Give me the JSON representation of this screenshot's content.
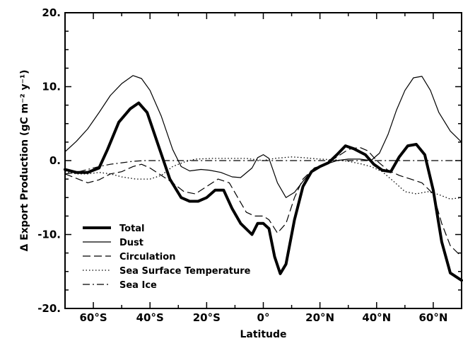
{
  "chart_data": {
    "type": "line",
    "xlabel": "Latitude",
    "ylabel": "Δ Export Production (gC m⁻² y⁻¹)",
    "xlim": [
      -70,
      70
    ],
    "ylim": [
      -20,
      20
    ],
    "x_ticks": [
      {
        "value": -60,
        "label": "60°S"
      },
      {
        "value": -40,
        "label": "40°S"
      },
      {
        "value": -20,
        "label": "20°S"
      },
      {
        "value": 0,
        "label": "0°"
      },
      {
        "value": 20,
        "label": "20°N"
      },
      {
        "value": 40,
        "label": "40°N"
      },
      {
        "value": 60,
        "label": "60°N"
      }
    ],
    "y_ticks": [
      {
        "value": 20,
        "label": "20."
      },
      {
        "value": 10,
        "label": "10."
      },
      {
        "value": 0,
        "label": "0."
      },
      {
        "value": -10,
        "label": "-10."
      },
      {
        "value": -20,
        "label": "-20."
      }
    ],
    "grid": false,
    "legend_position": "bottom-left",
    "series": [
      {
        "name": "Total",
        "style": "thick-solid",
        "points": [
          [
            -70,
            -1.2
          ],
          [
            -66,
            -1.6
          ],
          [
            -62,
            -1.6
          ],
          [
            -58,
            -1.0
          ],
          [
            -55,
            1.5
          ],
          [
            -51,
            5.2
          ],
          [
            -47,
            7.0
          ],
          [
            -44,
            7.8
          ],
          [
            -41,
            6.5
          ],
          [
            -37,
            2.0
          ],
          [
            -33,
            -2.5
          ],
          [
            -29,
            -5.0
          ],
          [
            -26,
            -5.5
          ],
          [
            -23,
            -5.5
          ],
          [
            -20,
            -5.0
          ],
          [
            -17,
            -4.0
          ],
          [
            -14,
            -4.0
          ],
          [
            -11,
            -6.5
          ],
          [
            -8,
            -8.5
          ],
          [
            -4,
            -10.0
          ],
          [
            -2,
            -8.5
          ],
          [
            0,
            -8.5
          ],
          [
            2,
            -9.2
          ],
          [
            4,
            -13.0
          ],
          [
            6,
            -15.3
          ],
          [
            8,
            -14.0
          ],
          [
            11,
            -8.0
          ],
          [
            14,
            -3.5
          ],
          [
            17,
            -1.5
          ],
          [
            20,
            -0.8
          ],
          [
            23,
            -0.3
          ],
          [
            26,
            0.8
          ],
          [
            29,
            2.0
          ],
          [
            32,
            1.6
          ],
          [
            36,
            0.8
          ],
          [
            39,
            -0.5
          ],
          [
            42,
            -1.3
          ],
          [
            45,
            -1.5
          ],
          [
            48,
            0.5
          ],
          [
            51,
            2.0
          ],
          [
            54,
            2.2
          ],
          [
            57,
            0.8
          ],
          [
            60,
            -4.0
          ],
          [
            63,
            -11.0
          ],
          [
            66,
            -15.2
          ],
          [
            70,
            -16.2
          ]
        ]
      },
      {
        "name": "Dust",
        "style": "thin-solid",
        "points": [
          [
            -70,
            1.2
          ],
          [
            -66,
            2.6
          ],
          [
            -62,
            4.3
          ],
          [
            -58,
            6.5
          ],
          [
            -54,
            8.8
          ],
          [
            -50,
            10.4
          ],
          [
            -46,
            11.5
          ],
          [
            -43,
            11.1
          ],
          [
            -40,
            9.5
          ],
          [
            -36,
            6.0
          ],
          [
            -32,
            1.5
          ],
          [
            -29,
            -0.8
          ],
          [
            -26,
            -1.4
          ],
          [
            -22,
            -1.2
          ],
          [
            -19,
            -1.3
          ],
          [
            -15,
            -1.6
          ],
          [
            -11,
            -2.2
          ],
          [
            -8,
            -2.3
          ],
          [
            -4,
            -1.0
          ],
          [
            -2,
            0.4
          ],
          [
            0,
            0.8
          ],
          [
            2,
            0.3
          ],
          [
            5,
            -3.0
          ],
          [
            8,
            -5.0
          ],
          [
            11,
            -4.3
          ],
          [
            14,
            -2.8
          ],
          [
            18,
            -1.0
          ],
          [
            22,
            -0.5
          ],
          [
            26,
            0.0
          ],
          [
            30,
            0.2
          ],
          [
            34,
            0.2
          ],
          [
            38,
            0.0
          ],
          [
            41,
            1.0
          ],
          [
            44,
            3.5
          ],
          [
            47,
            6.8
          ],
          [
            50,
            9.5
          ],
          [
            53,
            11.2
          ],
          [
            56,
            11.4
          ],
          [
            59,
            9.5
          ],
          [
            62,
            6.5
          ],
          [
            66,
            4.0
          ],
          [
            70,
            2.5
          ]
        ]
      },
      {
        "name": "Circulation",
        "style": "long-dash",
        "points": [
          [
            -70,
            -1.8
          ],
          [
            -66,
            -2.4
          ],
          [
            -62,
            -3.0
          ],
          [
            -58,
            -2.6
          ],
          [
            -54,
            -1.8
          ],
          [
            -50,
            -1.5
          ],
          [
            -46,
            -0.8
          ],
          [
            -43,
            -0.5
          ],
          [
            -40,
            -1.0
          ],
          [
            -36,
            -2.0
          ],
          [
            -32,
            -3.0
          ],
          [
            -28,
            -4.2
          ],
          [
            -24,
            -4.5
          ],
          [
            -20,
            -3.5
          ],
          [
            -16,
            -2.5
          ],
          [
            -12,
            -3.0
          ],
          [
            -9,
            -5.0
          ],
          [
            -6,
            -7.0
          ],
          [
            -3,
            -7.5
          ],
          [
            0,
            -7.5
          ],
          [
            2,
            -8.0
          ],
          [
            5,
            -9.8
          ],
          [
            8,
            -8.5
          ],
          [
            11,
            -5.0
          ],
          [
            14,
            -2.5
          ],
          [
            18,
            -1.0
          ],
          [
            22,
            -0.5
          ],
          [
            26,
            0.5
          ],
          [
            30,
            1.5
          ],
          [
            34,
            1.8
          ],
          [
            37,
            1.3
          ],
          [
            40,
            0.0
          ],
          [
            44,
            -1.3
          ],
          [
            48,
            -2.0
          ],
          [
            52,
            -2.5
          ],
          [
            56,
            -3.0
          ],
          [
            60,
            -4.5
          ],
          [
            63,
            -8.5
          ],
          [
            66,
            -11.5
          ],
          [
            70,
            -13.0
          ]
        ]
      },
      {
        "name": "Sea Surface Temperature",
        "style": "dotted",
        "points": [
          [
            -70,
            -1.5
          ],
          [
            -66,
            -1.8
          ],
          [
            -62,
            -1.8
          ],
          [
            -58,
            -1.6
          ],
          [
            -54,
            -1.8
          ],
          [
            -50,
            -2.2
          ],
          [
            -45,
            -2.5
          ],
          [
            -40,
            -2.5
          ],
          [
            -36,
            -2.0
          ],
          [
            -32,
            -0.8
          ],
          [
            -28,
            -0.2
          ],
          [
            -24,
            0.2
          ],
          [
            -18,
            0.3
          ],
          [
            -12,
            0.3
          ],
          [
            -6,
            0.3
          ],
          [
            -2,
            0.1
          ],
          [
            0,
            0.0
          ],
          [
            4,
            0.3
          ],
          [
            10,
            0.5
          ],
          [
            14,
            0.4
          ],
          [
            20,
            0.2
          ],
          [
            26,
            0.1
          ],
          [
            30,
            -0.1
          ],
          [
            34,
            -0.4
          ],
          [
            38,
            -0.8
          ],
          [
            42,
            -1.5
          ],
          [
            46,
            -2.8
          ],
          [
            50,
            -4.2
          ],
          [
            54,
            -4.5
          ],
          [
            58,
            -4.2
          ],
          [
            62,
            -4.6
          ],
          [
            66,
            -5.2
          ],
          [
            70,
            -5.0
          ]
        ]
      },
      {
        "name": "Sea Ice",
        "style": "dash-dot",
        "points": [
          [
            -70,
            -1.8
          ],
          [
            -66,
            -1.6
          ],
          [
            -62,
            -1.2
          ],
          [
            -58,
            -0.8
          ],
          [
            -54,
            -0.5
          ],
          [
            -50,
            -0.3
          ],
          [
            -46,
            -0.1
          ],
          [
            -42,
            0.0
          ],
          [
            -38,
            0.0
          ],
          [
            0,
            0.0
          ],
          [
            38,
            0.0
          ],
          [
            70,
            0.0
          ]
        ]
      }
    ]
  }
}
